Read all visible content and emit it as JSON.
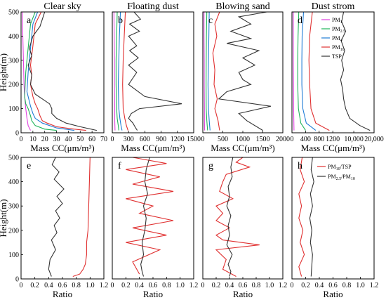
{
  "chart_data": [
    {
      "type": "line",
      "title": "Clear sky",
      "panel_letter": "a",
      "xlabel": "Mass CC(μm/m³)",
      "ylabel": "Height(m)",
      "xlim": [
        0,
        70
      ],
      "ylim": [
        0,
        500
      ],
      "xticks": [
        "0",
        "10",
        "20",
        "30",
        "40",
        "50",
        "60",
        "70"
      ],
      "yticks": [
        "0",
        "100",
        "200",
        "300",
        "400",
        "500"
      ],
      "grid": false,
      "series": [
        {
          "key": "PM1",
          "color": "#e040e0",
          "x": [
            1,
            1.5,
            2,
            2.5,
            3,
            4,
            5,
            6,
            8
          ],
          "y": [
            500,
            400,
            300,
            200,
            150,
            100,
            60,
            30,
            10
          ]
        },
        {
          "key": "PM2.5",
          "color": "#1fb45a",
          "x": [
            12,
            8,
            6,
            4,
            3,
            4,
            6,
            8,
            9,
            12,
            20,
            30
          ],
          "y": [
            500,
            450,
            350,
            250,
            150,
            120,
            100,
            70,
            50,
            30,
            15,
            10
          ]
        },
        {
          "key": "PM4",
          "color": "#1e7cd6",
          "x": [
            14,
            10,
            8,
            6,
            5,
            6,
            8,
            10,
            12,
            18,
            30,
            45
          ],
          "y": [
            500,
            450,
            350,
            250,
            170,
            150,
            110,
            80,
            60,
            40,
            20,
            10
          ]
        },
        {
          "key": "PM10",
          "color": "#e03030",
          "x": [
            17,
            12,
            10,
            8,
            9,
            8,
            10,
            12,
            14,
            16,
            18,
            22,
            30,
            45,
            55
          ],
          "y": [
            500,
            450,
            360,
            280,
            240,
            200,
            150,
            120,
            100,
            70,
            50,
            40,
            25,
            15,
            10
          ]
        },
        {
          "key": "TSP",
          "color": "#333333",
          "x": [
            20,
            16,
            10,
            7,
            9,
            6,
            9,
            8,
            12,
            18,
            24,
            26,
            26,
            30,
            38,
            50,
            64
          ],
          "y": [
            500,
            440,
            400,
            350,
            320,
            280,
            240,
            200,
            160,
            140,
            120,
            100,
            80,
            60,
            40,
            25,
            10
          ]
        }
      ]
    },
    {
      "type": "line",
      "title": "Floating dust",
      "panel_letter": "b",
      "xlabel": "Mass CC(μm/m³)",
      "ylabel": "",
      "xlim": [
        0,
        1500
      ],
      "ylim": [
        0,
        500
      ],
      "xticks": [
        "0",
        "300",
        "600",
        "900",
        "1200",
        "1500"
      ],
      "yticks": [],
      "grid": false,
      "series": [
        {
          "key": "PM1",
          "color": "#e040e0",
          "x": [
            30,
            35,
            40,
            40,
            45,
            45,
            50
          ],
          "y": [
            500,
            400,
            300,
            200,
            100,
            50,
            10
          ]
        },
        {
          "key": "PM2.5",
          "color": "#1fb45a",
          "x": [
            90,
            80,
            70,
            70,
            80,
            90,
            110,
            120
          ],
          "y": [
            500,
            400,
            300,
            200,
            100,
            60,
            30,
            10
          ]
        },
        {
          "key": "PM4",
          "color": "#1e7cd6",
          "x": [
            150,
            130,
            120,
            110,
            120,
            140,
            160,
            180
          ],
          "y": [
            500,
            400,
            300,
            200,
            100,
            60,
            30,
            10
          ]
        },
        {
          "key": "PM10",
          "color": "#e03030",
          "x": [
            240,
            220,
            200,
            190,
            200,
            230,
            260,
            290
          ],
          "y": [
            500,
            400,
            300,
            200,
            100,
            60,
            30,
            10
          ]
        },
        {
          "key": "TSP",
          "color": "#333333",
          "x": [
            400,
            520,
            320,
            500,
            300,
            450,
            320,
            480,
            300,
            450,
            300,
            600,
            1280,
            500,
            350,
            300,
            380,
            430,
            460
          ],
          "y": [
            500,
            470,
            450,
            420,
            400,
            360,
            340,
            310,
            280,
            250,
            200,
            150,
            120,
            100,
            80,
            60,
            40,
            20,
            10
          ]
        }
      ]
    },
    {
      "type": "line",
      "title": "Blowing sand",
      "panel_letter": "c",
      "xlabel": "Mass CC(μm/m³)",
      "ylabel": "",
      "xlim": [
        0,
        2000
      ],
      "ylim": [
        0,
        500
      ],
      "xticks": [
        "0",
        "500",
        "1000",
        "1500",
        "2000"
      ],
      "yticks": [],
      "grid": false,
      "series": [
        {
          "key": "PM1",
          "color": "#e040e0",
          "x": [
            30,
            30,
            35,
            35,
            40,
            40,
            45
          ],
          "y": [
            500,
            400,
            300,
            200,
            100,
            50,
            10
          ]
        },
        {
          "key": "PM2.5",
          "color": "#1fb45a",
          "x": [
            100,
            90,
            85,
            80,
            85,
            100,
            120
          ],
          "y": [
            500,
            400,
            300,
            200,
            100,
            50,
            10
          ]
        },
        {
          "key": "PM4",
          "color": "#1e7cd6",
          "x": [
            160,
            150,
            140,
            130,
            140,
            160,
            180
          ],
          "y": [
            500,
            400,
            300,
            200,
            100,
            50,
            10
          ]
        },
        {
          "key": "PM10",
          "color": "#e03030",
          "x": [
            420,
            300,
            350,
            250,
            300,
            280,
            360,
            300,
            380,
            420
          ],
          "y": [
            500,
            450,
            400,
            330,
            260,
            200,
            140,
            100,
            50,
            10
          ]
        },
        {
          "key": "TSP",
          "color": "#333333",
          "x": [
            1600,
            900,
            1200,
            700,
            1200,
            600,
            1400,
            1000,
            1300,
            900,
            1000,
            1200,
            600,
            400,
            1700,
            900,
            1100,
            1500
          ],
          "y": [
            500,
            480,
            450,
            420,
            390,
            370,
            340,
            310,
            280,
            250,
            220,
            200,
            170,
            140,
            110,
            80,
            50,
            10
          ]
        }
      ]
    },
    {
      "type": "line",
      "title": "Dust strom",
      "panel_letter": "d",
      "xlabel": "Mass CC(μm/m³)",
      "ylabel": "",
      "xlim": [
        0,
        20000
      ],
      "ylim": [
        0,
        500
      ],
      "xticks": [
        "0",
        "400",
        "800",
        "1200",
        "10,000",
        "20,000"
      ],
      "yticks": [],
      "grid": false,
      "legend": {
        "position": "top-right",
        "entries": [
          {
            "label": "PM1",
            "sub": "1",
            "base": "PM",
            "color": "#e040e0"
          },
          {
            "label": "PM2.5",
            "sub": "2.5",
            "base": "PM",
            "color": "#1fb45a"
          },
          {
            "label": "PM4",
            "sub": "4",
            "base": "PM",
            "color": "#1e7cd6"
          },
          {
            "label": "PM10",
            "sub": "10",
            "base": "PM",
            "color": "#e03030"
          },
          {
            "label": "TSP",
            "sub": "",
            "base": "TSP",
            "color": "#333333"
          }
        ]
      },
      "series": [
        {
          "key": "PM1",
          "color": "#e040e0",
          "x": [
            40,
            40,
            40,
            45,
            50,
            60
          ],
          "y": [
            500,
            400,
            300,
            200,
            100,
            10
          ]
        },
        {
          "key": "PM2.5",
          "color": "#1fb45a",
          "x": [
            200,
            180,
            170,
            170,
            190,
            260,
            400
          ],
          "y": [
            500,
            400,
            300,
            200,
            100,
            40,
            10
          ]
        },
        {
          "key": "PM4",
          "color": "#1e7cd6",
          "x": [
            340,
            300,
            290,
            290,
            320,
            420,
            700
          ],
          "y": [
            500,
            400,
            300,
            200,
            100,
            40,
            10
          ]
        },
        {
          "key": "PM10",
          "color": "#e03030",
          "x": [
            600,
            520,
            500,
            520,
            560,
            700,
            1100
          ],
          "y": [
            500,
            400,
            300,
            200,
            100,
            40,
            10
          ]
        },
        {
          "key": "TSP",
          "color": "#333333",
          "x": [
            5000,
            4000,
            6000,
            3800,
            5500,
            4000,
            5000,
            3500,
            4500,
            5000,
            6000,
            8000,
            13000,
            18000
          ],
          "y": [
            500,
            460,
            420,
            380,
            340,
            300,
            260,
            220,
            180,
            140,
            100,
            60,
            30,
            10
          ]
        }
      ]
    },
    {
      "type": "line",
      "title": "",
      "panel_letter": "e",
      "xlabel": "Ratio",
      "ylabel": "Height(m)",
      "xlim": [
        0,
        1.2
      ],
      "ylim": [
        0,
        500
      ],
      "xticks": [
        "0",
        "0.2",
        "0.4",
        "0.6",
        "0.8",
        "1.0",
        "1.2"
      ],
      "yticks": [
        "0",
        "100",
        "200",
        "300",
        "400",
        "500"
      ],
      "grid": false,
      "series": [
        {
          "key": "PM10/TSP",
          "color": "#e03030",
          "x": [
            1.0,
            0.99,
            0.98,
            0.97,
            0.95,
            0.95,
            0.93,
            0.9,
            0.85,
            0.75
          ],
          "y": [
            500,
            400,
            300,
            200,
            150,
            100,
            60,
            40,
            20,
            10
          ]
        },
        {
          "key": "PM2.5/PM10",
          "color": "#333333",
          "x": [
            0.5,
            0.45,
            0.55,
            0.48,
            0.62,
            0.52,
            0.6,
            0.5,
            0.56,
            0.48,
            0.52,
            0.44,
            0.5,
            0.42,
            0.4,
            0.44
          ],
          "y": [
            500,
            470,
            440,
            410,
            370,
            340,
            310,
            280,
            250,
            220,
            190,
            160,
            120,
            80,
            40,
            10
          ]
        }
      ]
    },
    {
      "type": "line",
      "title": "",
      "panel_letter": "f",
      "xlabel": "Ratio",
      "ylabel": "",
      "xlim": [
        0,
        1.2
      ],
      "ylim": [
        0,
        500
      ],
      "xticks": [
        "0",
        "0.2",
        "0.4",
        "0.6",
        "0.8",
        "1.0",
        "1.2"
      ],
      "yticks": [],
      "grid": false,
      "series": [
        {
          "key": "PM10/TSP",
          "color": "#e03030",
          "x": [
            0.3,
            0.8,
            0.2,
            0.7,
            0.3,
            0.9,
            0.2,
            0.6,
            0.4,
            0.9,
            0.3,
            0.8,
            0.2,
            0.7,
            0.3,
            0.4
          ],
          "y": [
            500,
            475,
            450,
            420,
            390,
            360,
            330,
            300,
            270,
            240,
            210,
            180,
            150,
            120,
            70,
            20
          ]
        },
        {
          "key": "PM2.5/PM10",
          "color": "#333333",
          "x": [
            0.55,
            0.5,
            0.48,
            0.52,
            0.46,
            0.5,
            0.48,
            0.44,
            0.46,
            0.42,
            0.44,
            0.46
          ],
          "y": [
            500,
            450,
            400,
            350,
            300,
            250,
            200,
            150,
            100,
            60,
            30,
            10
          ]
        }
      ]
    },
    {
      "type": "line",
      "title": "",
      "panel_letter": "g",
      "xlabel": "Ratio",
      "ylabel": "",
      "xlim": [
        0,
        1.2
      ],
      "ylim": [
        0,
        500
      ],
      "xticks": [
        "0",
        "0.2",
        "0.4",
        "0.6",
        "0.8",
        "1.0",
        "1.2"
      ],
      "yticks": [],
      "grid": false,
      "series": [
        {
          "key": "PM10/TSP",
          "color": "#e03030",
          "x": [
            0.6,
            0.5,
            0.7,
            0.35,
            0.3,
            0.25,
            0.45,
            0.2,
            0.3,
            0.2,
            0.4,
            0.2,
            0.3,
            0.85,
            0.2,
            0.35,
            0.3,
            0.5
          ],
          "y": [
            500,
            480,
            460,
            430,
            400,
            360,
            330,
            300,
            270,
            240,
            210,
            180,
            160,
            140,
            120,
            80,
            40,
            10
          ]
        },
        {
          "key": "PM2.5/PM10",
          "color": "#333333",
          "x": [
            0.45,
            0.42,
            0.44,
            0.38,
            0.4,
            0.36,
            0.42,
            0.38,
            0.4,
            0.36,
            0.44,
            0.38,
            0.42,
            0.4
          ],
          "y": [
            500,
            460,
            420,
            380,
            340,
            300,
            260,
            220,
            180,
            140,
            100,
            60,
            30,
            10
          ]
        }
      ]
    },
    {
      "type": "line",
      "title": "",
      "panel_letter": "h",
      "xlabel": "Ratio",
      "ylabel": "",
      "xlim": [
        0,
        1.2
      ],
      "ylim": [
        0,
        500
      ],
      "xticks": [
        "0",
        "0.2",
        "0.4",
        "0.6",
        "0.8",
        "1.0",
        "1.2"
      ],
      "yticks": [],
      "grid": false,
      "legend": {
        "position": "top-right",
        "entries": [
          {
            "label": "PM10/TSP",
            "color": "#e03030",
            "base": "PM",
            "sub": "10",
            "tail": "/TSP"
          },
          {
            "label": "PM2.5/PM10",
            "color": "#333333",
            "base": "PM",
            "sub": "2.5",
            "tail": "/PM",
            "sub2": "10"
          }
        ]
      },
      "series": [
        {
          "key": "PM10/TSP",
          "color": "#e03030",
          "x": [
            0.15,
            0.12,
            0.18,
            0.1,
            0.14,
            0.1,
            0.16,
            0.12,
            0.18,
            0.1,
            0.14
          ],
          "y": [
            500,
            450,
            400,
            350,
            300,
            250,
            200,
            150,
            100,
            50,
            10
          ]
        },
        {
          "key": "PM2.5/PM10",
          "color": "#333333",
          "x": [
            0.3,
            0.28,
            0.32,
            0.27,
            0.3,
            0.26,
            0.29,
            0.27,
            0.3,
            0.28
          ],
          "y": [
            500,
            450,
            400,
            350,
            300,
            250,
            200,
            150,
            100,
            10
          ]
        }
      ]
    }
  ]
}
